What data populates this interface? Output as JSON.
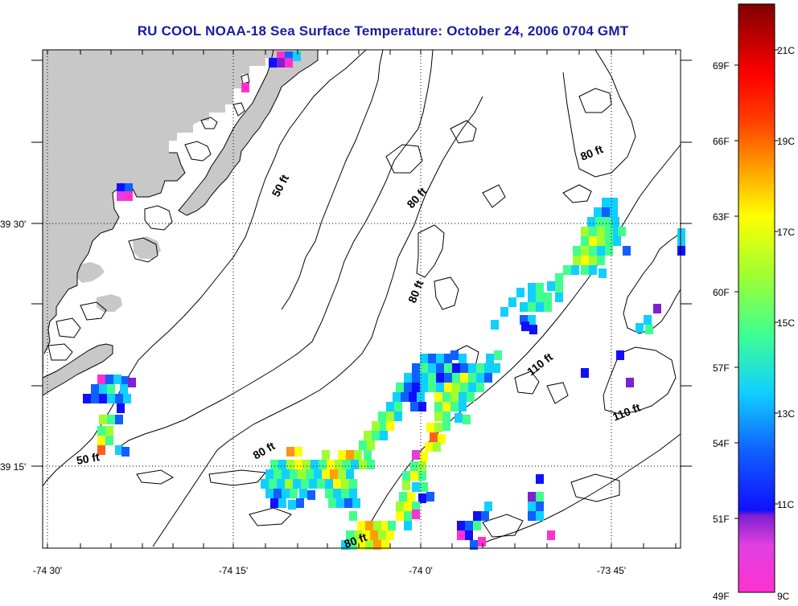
{
  "title": "RU COOL  NOAA-18  Sea Surface Temperature:  October 24, 2006 0704 GMT",
  "axes": {
    "lon_ticks": [
      "-74 30'",
      "-74 15'",
      "-74 0'",
      "-73 45'"
    ],
    "lat_ticks": [
      "39 30'",
      "39 15'"
    ]
  },
  "contours": {
    "labels": [
      "50 ft",
      "50 ft",
      "80 ft",
      "80 ft",
      "80 ft",
      "80 ft",
      "80 ft",
      "110 ft",
      "110 ft"
    ]
  },
  "colorbar": {
    "fahrenheit": [
      "69F",
      "66F",
      "63F",
      "60F",
      "57F",
      "54F",
      "51F",
      "49F"
    ],
    "celsius": [
      "21C",
      "19C",
      "17C",
      "15C",
      "13C",
      "11C",
      "9C"
    ]
  },
  "colors": {
    "title": "#1a1aa6",
    "land": "#c8c8c8"
  }
}
